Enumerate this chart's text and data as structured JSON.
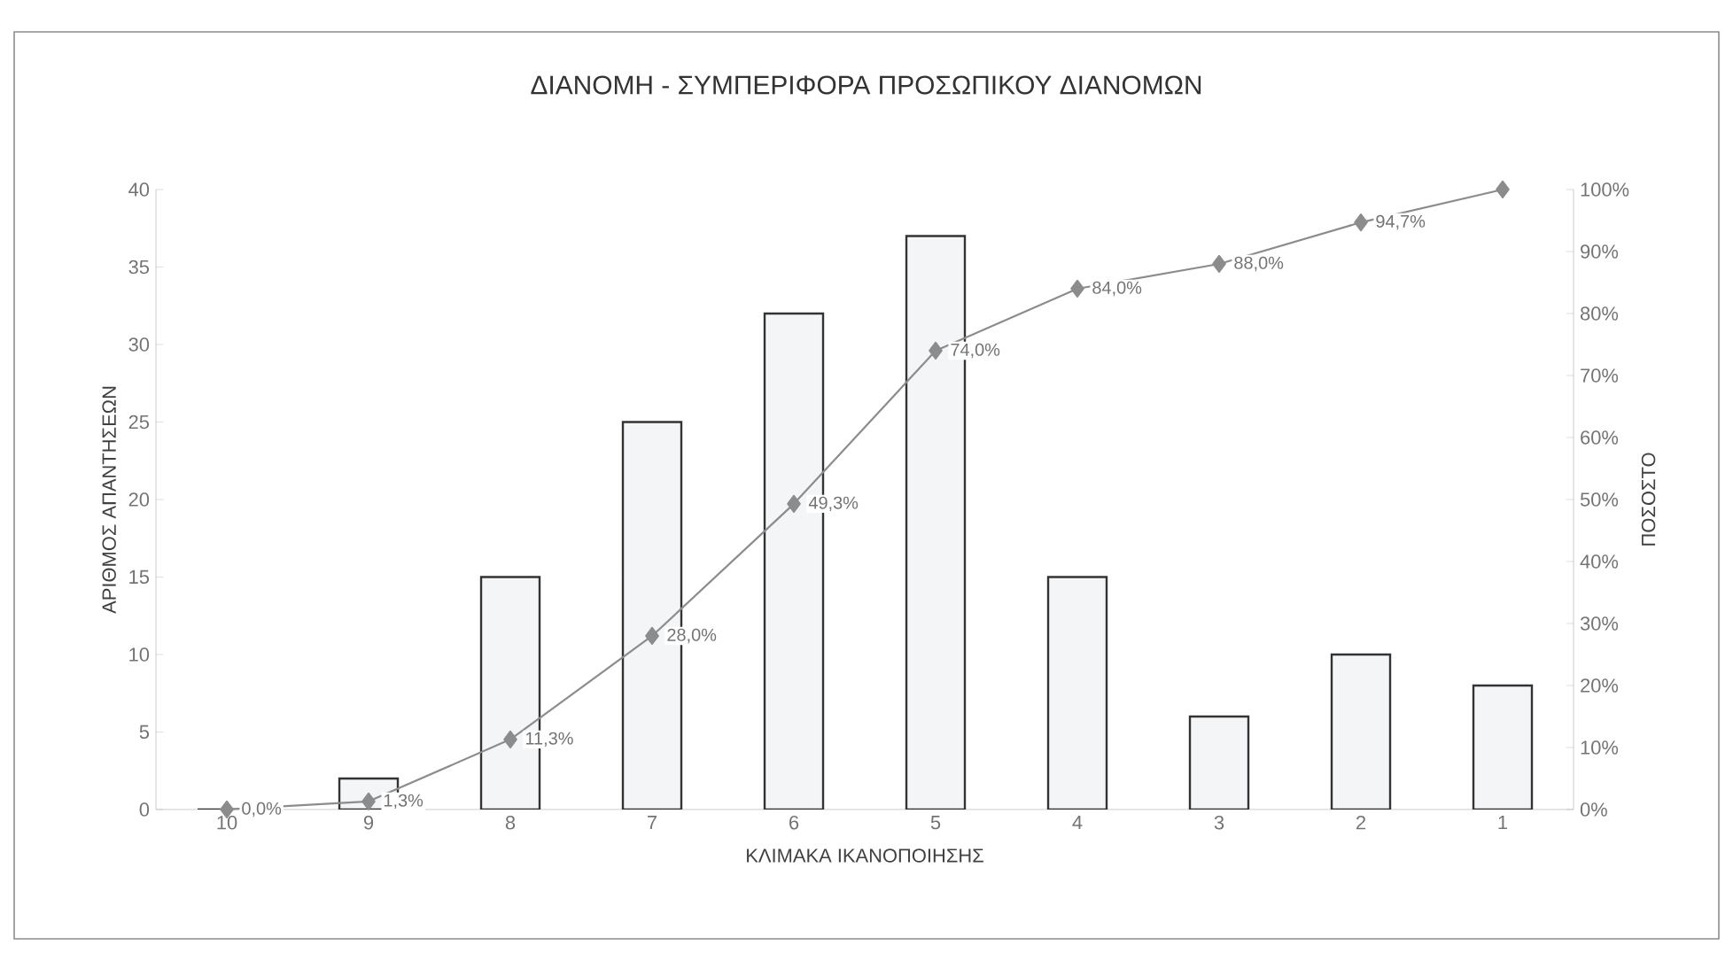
{
  "chart_data": {
    "type": "bar",
    "title": "ΔΙΑΝΟΜΗ - ΣΥΜΠΕΡΙΦΟΡΑ ΠΡΟΣΩΠΙΚΟΥ ΔΙΑΝΟΜΩΝ",
    "xlabel": "ΚΛΙΜΑΚΑ ΙΚΑΝΟΠΟΙΗΣΗΣ",
    "ylabel": "ΑΡΙΘΜΟΣ ΑΠΑΝΤΗΣΕΩΝ",
    "y2label": "ΠΟΣΟΣΤΟ",
    "categories": [
      "10",
      "9",
      "8",
      "7",
      "6",
      "5",
      "4",
      "3",
      "2",
      "1"
    ],
    "ylim": [
      0,
      40
    ],
    "yticks": [
      0,
      5,
      10,
      15,
      20,
      25,
      30,
      35,
      40
    ],
    "y2lim": [
      0,
      100
    ],
    "y2ticks": [
      {
        "value": 0,
        "label": "0%"
      },
      {
        "value": 10,
        "label": "10%"
      },
      {
        "value": 20,
        "label": "20%"
      },
      {
        "value": 30,
        "label": "30%"
      },
      {
        "value": 40,
        "label": "40%"
      },
      {
        "value": 50,
        "label": "50%"
      },
      {
        "value": 60,
        "label": "60%"
      },
      {
        "value": 70,
        "label": "70%"
      },
      {
        "value": 80,
        "label": "80%"
      },
      {
        "value": 90,
        "label": "90%"
      },
      {
        "value": 100,
        "label": "100%"
      }
    ],
    "marker": "diamond",
    "grid": false,
    "series": [
      {
        "color": "#f3f5f7",
        "values": [
          0,
          2,
          15,
          25,
          32,
          37,
          15,
          6,
          10,
          8
        ]
      },
      {
        "type": "line",
        "axis": "y2",
        "color": "#8c8c8c",
        "values": [
          0,
          1.3,
          11.3,
          28,
          49.3,
          74,
          84,
          88,
          94.7,
          100
        ],
        "value_labels": [
          "0,0%",
          "1,3%",
          "11,3%",
          "28,0%",
          "49,3%",
          "74,0%",
          "84,0%",
          "88,0%",
          "94,7%",
          null
        ]
      }
    ]
  }
}
